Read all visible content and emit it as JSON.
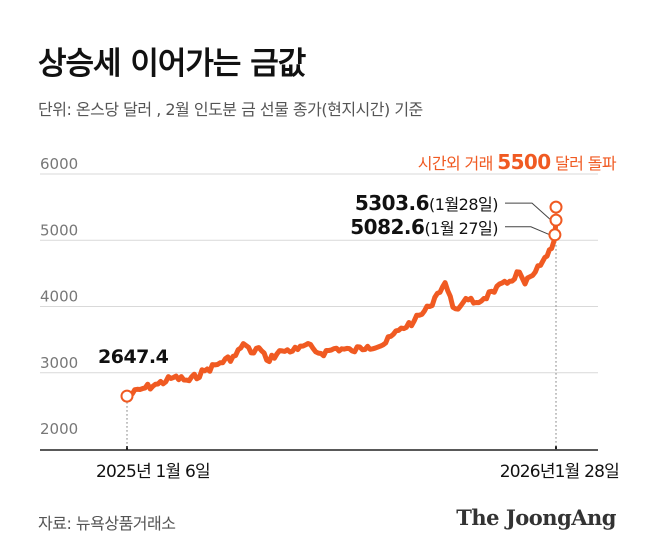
{
  "chart_data": {
    "type": "line",
    "title": "상승세 이어가는 금값",
    "subtitle": "단위: 온스당 달러 , 2월 인도분 금 선물 종가(현지시간) 기준",
    "x_range": [
      "2025-01-06",
      "2026-01-28"
    ],
    "x_tick_labels": [
      "2025년 1월 6일",
      "2026년1월 28일"
    ],
    "y_ticks": [
      2000,
      3000,
      4000,
      5000,
      6000
    ],
    "ylim": [
      2000,
      6000
    ],
    "grid": "horizontal",
    "series": [
      {
        "color": "#f05a22",
        "points": [
          [
            "2025-01-06",
            2647.4
          ],
          [
            "2025-01-20",
            2760
          ],
          [
            "2025-02-03",
            2830
          ],
          [
            "2025-02-17",
            2930
          ],
          [
            "2025-03-03",
            2880
          ],
          [
            "2025-03-17",
            3030
          ],
          [
            "2025-03-31",
            3150
          ],
          [
            "2025-04-14",
            3260
          ],
          [
            "2025-04-21",
            3440
          ],
          [
            "2025-04-28",
            3300
          ],
          [
            "2025-05-05",
            3380
          ],
          [
            "2025-05-12",
            3190
          ],
          [
            "2025-05-26",
            3330
          ],
          [
            "2025-06-09",
            3350
          ],
          [
            "2025-06-16",
            3420
          ],
          [
            "2025-06-30",
            3290
          ],
          [
            "2025-07-14",
            3370
          ],
          [
            "2025-07-28",
            3330
          ],
          [
            "2025-08-11",
            3400
          ],
          [
            "2025-08-25",
            3420
          ],
          [
            "2025-09-08",
            3640
          ],
          [
            "2025-09-22",
            3780
          ],
          [
            "2025-10-06",
            4000
          ],
          [
            "2025-10-13",
            4200
          ],
          [
            "2025-10-20",
            4360
          ],
          [
            "2025-10-27",
            3990
          ],
          [
            "2025-11-03",
            4010
          ],
          [
            "2025-11-10",
            4100
          ],
          [
            "2025-11-17",
            4060
          ],
          [
            "2025-11-24",
            4120
          ],
          [
            "2025-12-01",
            4230
          ],
          [
            "2025-12-15",
            4350
          ],
          [
            "2025-12-26",
            4520
          ],
          [
            "2025-12-31",
            4340
          ],
          [
            "2026-01-07",
            4470
          ],
          [
            "2026-01-14",
            4620
          ],
          [
            "2026-01-20",
            4760
          ],
          [
            "2026-01-26",
            4980
          ],
          [
            "2026-01-27",
            5082.6
          ],
          [
            "2026-01-28",
            5303.6
          ]
        ]
      }
    ],
    "annotations": [
      {
        "x": "2025-01-06",
        "y": 2647.4,
        "label": "2647.4"
      },
      {
        "x": "2026-01-27",
        "y": 5082.6,
        "label": "5082.6",
        "note": "(1월 27일)"
      },
      {
        "x": "2026-01-28",
        "y": 5303.6,
        "label": "5303.6",
        "note": "(1월28일)"
      },
      {
        "x": "2026-01-28",
        "y": 5500,
        "label": "시간외 거래 ",
        "value_label": "5500",
        "suffix": " 달러 돌파"
      }
    ]
  },
  "source": "자료: 뉴욕상품거래소",
  "logo": "The JoongAng",
  "colors": {
    "accent": "#f05a22",
    "grid": "#d9d9d9",
    "text": "#111111",
    "muted": "#555555"
  }
}
